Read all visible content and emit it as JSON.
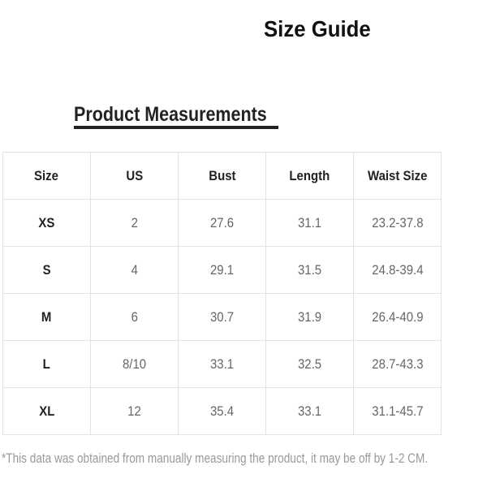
{
  "title": "Size Guide",
  "subtitle": "Product Measurements",
  "table": {
    "headers": [
      "Size",
      "US",
      "Bust",
      "Length",
      "Waist Size"
    ],
    "rows": [
      [
        "XS",
        "2",
        "27.6",
        "31.1",
        "23.2-37.8"
      ],
      [
        "S",
        "4",
        "29.1",
        "31.5",
        "24.8-39.4"
      ],
      [
        "M",
        "6",
        "30.7",
        "31.9",
        "26.4-40.9"
      ],
      [
        "L",
        "8/10",
        "33.1",
        "32.5",
        "28.7-43.3"
      ],
      [
        "XL",
        "12",
        "35.4",
        "33.1",
        "31.1-45.7"
      ]
    ]
  },
  "note": "*This data was obtained from manually measuring the product, it may be off by 1-2 CM."
}
